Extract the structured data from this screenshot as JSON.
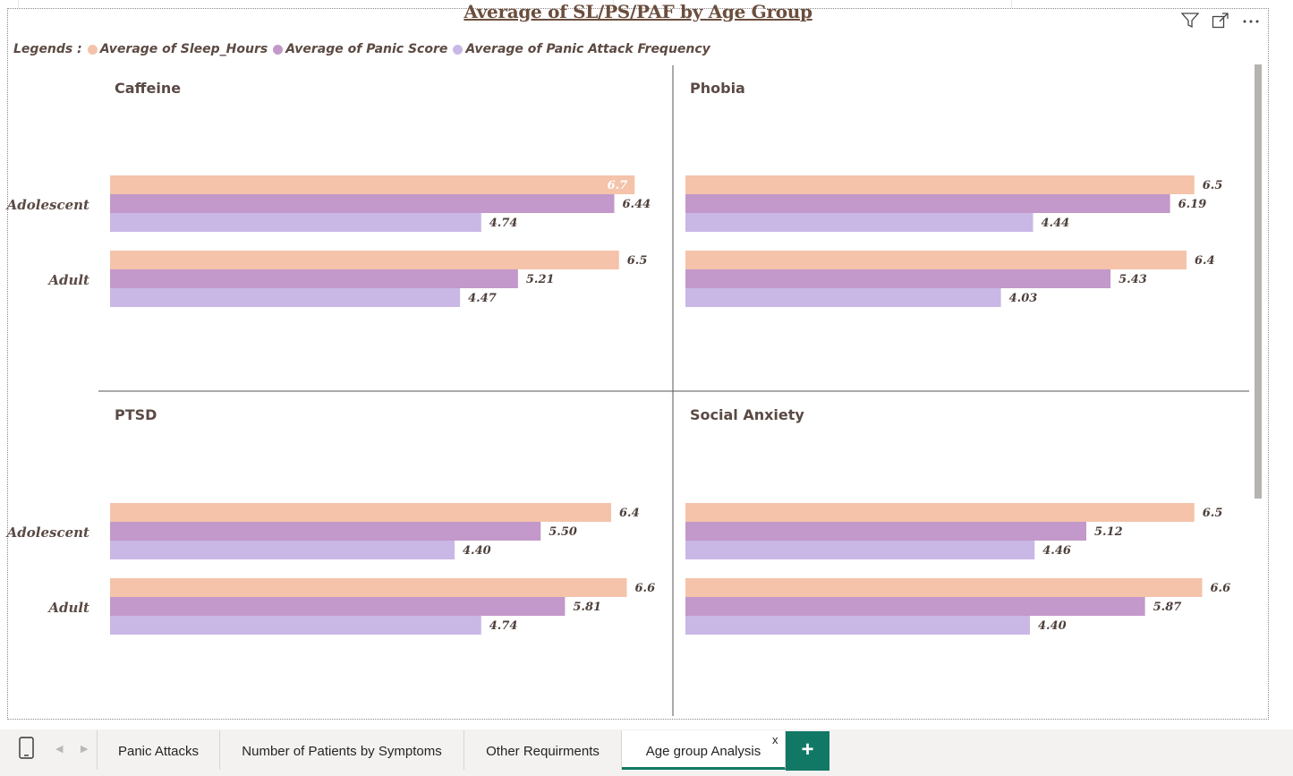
{
  "title": "Average of SL/PS/PAF by Age Group",
  "legend": {
    "label": "Legends :",
    "items": [
      {
        "name": "Average of Sleep_Hours",
        "color": "#f4c3aa"
      },
      {
        "name": "Average of Panic Score",
        "color": "#c398ca"
      },
      {
        "name": "Average of Panic Attack Frequency",
        "color": "#c9b7e6"
      }
    ]
  },
  "icons": [
    "filter-icon",
    "focus-mode-icon",
    "more-options-icon"
  ],
  "chart_data": {
    "type": "bar",
    "orientation": "horizontal",
    "xlim": [
      0,
      7.2
    ],
    "grid": false,
    "legend_position": "top-left",
    "series_names": [
      "Average of Sleep_Hours",
      "Average of Panic Score",
      "Average of Panic Attack Frequency"
    ],
    "series_colors": [
      "#f4c3aa",
      "#c398ca",
      "#c9b7e6"
    ],
    "panels": [
      {
        "title": "Caffeine",
        "categories": [
          "Adolescent",
          "Adult"
        ],
        "values": [
          [
            6.7,
            6.44,
            4.74
          ],
          [
            6.5,
            5.21,
            4.47
          ]
        ],
        "labels": [
          [
            "6.7",
            "6.44",
            "4.74"
          ],
          [
            "6.5",
            "5.21",
            "4.47"
          ]
        ]
      },
      {
        "title": "Phobia",
        "categories": [
          "Adolescent",
          "Adult"
        ],
        "values": [
          [
            6.5,
            6.19,
            4.44
          ],
          [
            6.4,
            5.43,
            4.03
          ]
        ],
        "labels": [
          [
            "6.5",
            "6.19",
            "4.44"
          ],
          [
            "6.4",
            "5.43",
            "4.03"
          ]
        ]
      },
      {
        "title": "PTSD",
        "categories": [
          "Adolescent",
          "Adult"
        ],
        "values": [
          [
            6.4,
            5.5,
            4.4
          ],
          [
            6.6,
            5.81,
            4.74
          ]
        ],
        "labels": [
          [
            "6.4",
            "5.50",
            "4.40"
          ],
          [
            "6.6",
            "5.81",
            "4.74"
          ]
        ]
      },
      {
        "title": "Social Anxiety",
        "categories": [
          "Adolescent",
          "Adult"
        ],
        "values": [
          [
            6.5,
            5.12,
            4.46
          ],
          [
            6.6,
            5.87,
            4.4
          ]
        ],
        "labels": [
          [
            "6.5",
            "5.12",
            "4.46"
          ],
          [
            "6.6",
            "5.87",
            "4.40"
          ]
        ]
      }
    ]
  },
  "tabs": [
    {
      "label": "Panic Attacks",
      "active": false
    },
    {
      "label": "Number of Patients by Symptoms",
      "active": false
    },
    {
      "label": "Other Requirments",
      "active": false
    },
    {
      "label": "Age group Analysis",
      "active": true
    }
  ],
  "tab_close": "x",
  "add_tab": "+"
}
